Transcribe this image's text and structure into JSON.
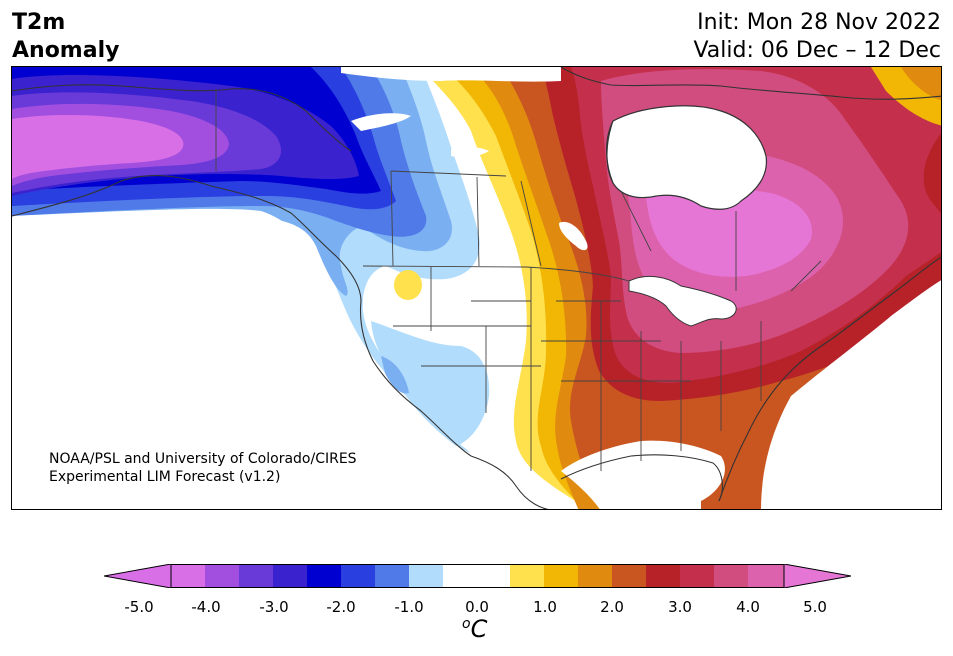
{
  "header": {
    "title_line1": "T2m",
    "title_line2": "Anomaly",
    "init": "Init: Mon 28 Nov 2022",
    "valid": "Valid: 06 Dec – 12 Dec"
  },
  "credit": {
    "line1": "NOAA/PSL and University of Colorado/CIRES",
    "line2": "Experimental LIM Forecast (v1.2)"
  },
  "colorbar": {
    "unit_base": "C",
    "unit_sup": "o",
    "ticks": [
      "-5.0",
      "-4.0",
      "-3.0",
      "-2.0",
      "-1.0",
      "0.0",
      "1.0",
      "2.0",
      "3.0",
      "4.0",
      "5.0"
    ],
    "colors": {
      "lt_m5": "#d96fe6",
      "m5_m45": "#d96fe6",
      "m45_m4": "#a24fe0",
      "m4_m35": "#6a3ad8",
      "m35_m3": "#3a22cf",
      "m3_m25": "#0000d0",
      "m25_m2": "#2a3fe0",
      "m2_m15": "#4f7ae8",
      "m15_m1": "#7ab0f2",
      "m1_m05": "#b2dcfb",
      "m05_05": "#ffffff",
      "p05_1": "#ffe14d",
      "p1_15": "#f2b705",
      "p15_2": "#e08a10",
      "p2_25": "#c95520",
      "p25_3": "#b62228",
      "p3_35": "#c4304c",
      "p35_4": "#d24d7f",
      "p4_45": "#dc62ae",
      "p45_5": "#e676d5",
      "gt_5": "#e676d5"
    }
  }
}
